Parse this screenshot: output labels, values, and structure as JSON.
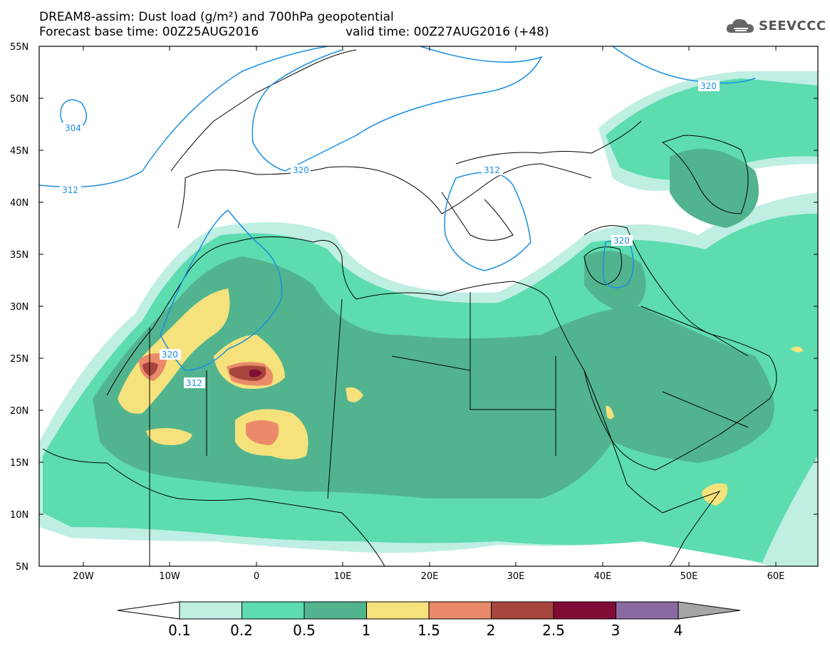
{
  "title": {
    "line1": "DREAM8-assim: Dust load (g/m²) and 700hPa geopotential",
    "line2_base": "Forecast base time: 00Z25AUG2016",
    "line2_valid": "valid time: 00Z27AUG2016 (+48)"
  },
  "logo": {
    "text": "SEEVCCC",
    "icon": "cloud-icon"
  },
  "axes": {
    "lat_labels": [
      "55N",
      "50N",
      "45N",
      "40N",
      "35N",
      "30N",
      "25N",
      "20N",
      "15N",
      "10N",
      "5N"
    ],
    "lon_labels": [
      "20W",
      "10W",
      "0",
      "10E",
      "20E",
      "30E",
      "40E",
      "50E",
      "60E"
    ],
    "lon_range": [
      -25,
      65
    ],
    "lat_range": [
      5,
      55
    ]
  },
  "contours": {
    "variable": "700hPa geopotential",
    "labels": [
      "304",
      "312",
      "320",
      "320",
      "312",
      "320",
      "320",
      "312"
    ]
  },
  "colorbar": {
    "ticks": [
      "0.1",
      "0.2",
      "0.5",
      "1",
      "1.5",
      "2",
      "2.5",
      "3",
      "4"
    ],
    "colors": [
      "#bfeee3",
      "#5ddcb0",
      "#52b48f",
      "#f5e27c",
      "#ea8a6a",
      "#a7463c",
      "#800d37",
      "#8a6aa0",
      "#a6a6a6"
    ],
    "under_color": "#ffffff",
    "over_color": "#a6a6a6"
  }
}
